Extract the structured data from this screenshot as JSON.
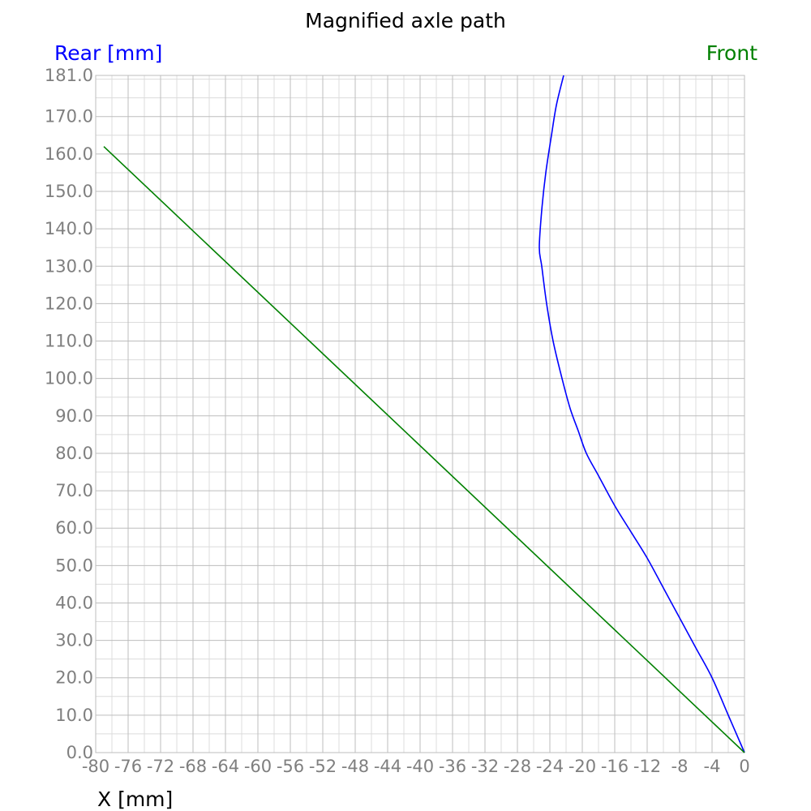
{
  "chart_data": {
    "type": "line",
    "title": "Magnified axle path",
    "xlabel": "X [mm]",
    "ylabel": "",
    "xlim": [
      -80,
      0
    ],
    "ylim": [
      0,
      181
    ],
    "grid": true,
    "legend_placement": "top",
    "x_ticks": [
      -80,
      -76,
      -72,
      -68,
      -64,
      -60,
      -56,
      -52,
      -48,
      -44,
      -40,
      -36,
      -32,
      -28,
      -24,
      -20,
      -16,
      -12,
      -8,
      -4,
      0
    ],
    "x_tick_labels": [
      "-80",
      "-76",
      "-72",
      "-68",
      "-64",
      "-60",
      "-56",
      "-52",
      "-48",
      "-44",
      "-40",
      "-36",
      "-32",
      "-28",
      "-24",
      "-20",
      "-16",
      "-12",
      "-8",
      "-4",
      "0"
    ],
    "y_ticks": [
      0,
      10,
      20,
      30,
      40,
      50,
      60,
      70,
      80,
      90,
      100,
      110,
      120,
      130,
      140,
      150,
      160,
      170,
      181
    ],
    "y_tick_labels": [
      "0.0",
      "10.0",
      "20.0",
      "30.0",
      "40.0",
      "50.0",
      "60.0",
      "70.0",
      "80.0",
      "90.0",
      "100.0",
      "110.0",
      "120.0",
      "130.0",
      "140.0",
      "150.0",
      "160.0",
      "170.0",
      "181.0"
    ],
    "series": [
      {
        "name": "Rear [mm]",
        "color": "#0000ff",
        "x": [
          0,
          -2,
          -4,
          -6,
          -8,
          -10,
          -12,
          -14,
          -16,
          -18,
          -19.5,
          -20.5,
          -21.5,
          -22.5,
          -23.6,
          -24.4,
          -25.0,
          -25.3,
          -25.0,
          -24.5,
          -23.8,
          -23.2,
          -22.3
        ],
        "y": [
          0,
          10,
          20,
          28,
          36,
          44,
          52,
          59,
          66,
          74,
          80,
          86,
          92,
          100,
          110,
          120,
          130,
          135,
          145,
          155,
          165,
          173,
          181
        ]
      },
      {
        "name": "Front",
        "color": "#008000",
        "x": [
          0,
          -79
        ],
        "y": [
          0,
          162
        ]
      }
    ]
  }
}
